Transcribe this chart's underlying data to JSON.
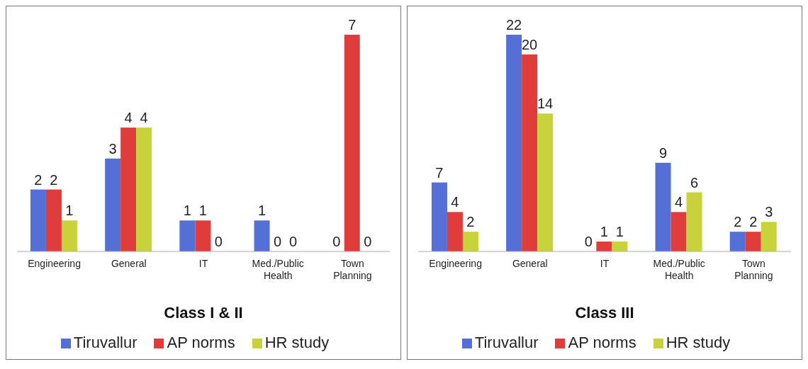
{
  "chart_data": [
    {
      "type": "bar",
      "title": "Class I & II",
      "categories": [
        "Engineering",
        "General",
        "IT",
        "Med./Public Health",
        "Town Planning"
      ],
      "series": [
        {
          "name": "Tiruvallur",
          "color": "#5470d6",
          "values": [
            2,
            3,
            1,
            1,
            0
          ]
        },
        {
          "name": "AP norms",
          "color": "#e03c3c",
          "values": [
            2,
            4,
            1,
            0,
            7
          ]
        },
        {
          "name": "HR study",
          "color": "#c8d33c",
          "values": [
            1,
            4,
            0,
            0,
            0
          ]
        }
      ],
      "data_labels": true,
      "legend": "bottom"
    },
    {
      "type": "bar",
      "title": "Class III",
      "categories": [
        "Engineering",
        "General",
        "IT",
        "Med./Public Health",
        "Town Planning"
      ],
      "series": [
        {
          "name": "Tiruvallur",
          "color": "#5470d6",
          "values": [
            7,
            22,
            0,
            9,
            2
          ]
        },
        {
          "name": "AP norms",
          "color": "#e03c3c",
          "values": [
            4,
            20,
            1,
            4,
            2
          ]
        },
        {
          "name": "HR study",
          "color": "#c8d33c",
          "values": [
            2,
            14,
            1,
            6,
            3
          ]
        }
      ],
      "data_labels": true,
      "legend": "bottom"
    }
  ]
}
